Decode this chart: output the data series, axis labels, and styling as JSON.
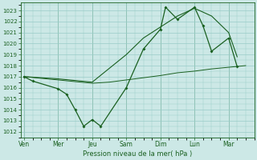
{
  "xlabel": "Pression niveau de la mer( hPa )",
  "ylim": [
    1011.5,
    1023.7
  ],
  "yticks": [
    1012,
    1013,
    1014,
    1015,
    1016,
    1017,
    1018,
    1019,
    1020,
    1021,
    1022,
    1023
  ],
  "day_labels": [
    "Ven",
    "Mer",
    "Jeu",
    "Sam",
    "Dim",
    "Lun",
    "Mar"
  ],
  "day_positions": [
    0,
    2,
    4,
    6,
    8,
    10,
    12
  ],
  "xlim": [
    -0.2,
    13.5
  ],
  "bg_color": "#cce8e6",
  "grid_color": "#99ccc8",
  "line_color": "#1a6020",
  "series1_x": [
    0,
    0.5,
    2,
    2.5,
    3,
    3.5,
    4.0,
    4.5,
    6,
    7,
    8,
    8.3,
    9,
    10,
    10.5,
    11,
    12,
    12.5
  ],
  "series1_y": [
    1017.0,
    1016.6,
    1015.9,
    1015.4,
    1014.0,
    1012.5,
    1013.1,
    1012.5,
    1016.0,
    1019.5,
    1021.3,
    1023.3,
    1022.2,
    1023.3,
    1021.6,
    1019.3,
    1020.5,
    1017.9
  ],
  "series2_x": [
    0,
    1,
    2,
    3,
    4,
    5,
    6,
    7,
    8,
    9,
    10,
    11,
    12,
    13
  ],
  "series2_y": [
    1017.0,
    1016.85,
    1016.7,
    1016.55,
    1016.4,
    1016.5,
    1016.7,
    1016.9,
    1017.1,
    1017.35,
    1017.5,
    1017.7,
    1017.85,
    1018.0
  ],
  "series3_x": [
    0,
    2,
    4,
    6,
    7,
    8,
    9,
    10,
    11,
    12,
    12.5
  ],
  "series3_y": [
    1017.0,
    1016.8,
    1016.5,
    1019.0,
    1020.5,
    1021.5,
    1022.5,
    1023.2,
    1022.5,
    1021.0,
    1018.8
  ]
}
